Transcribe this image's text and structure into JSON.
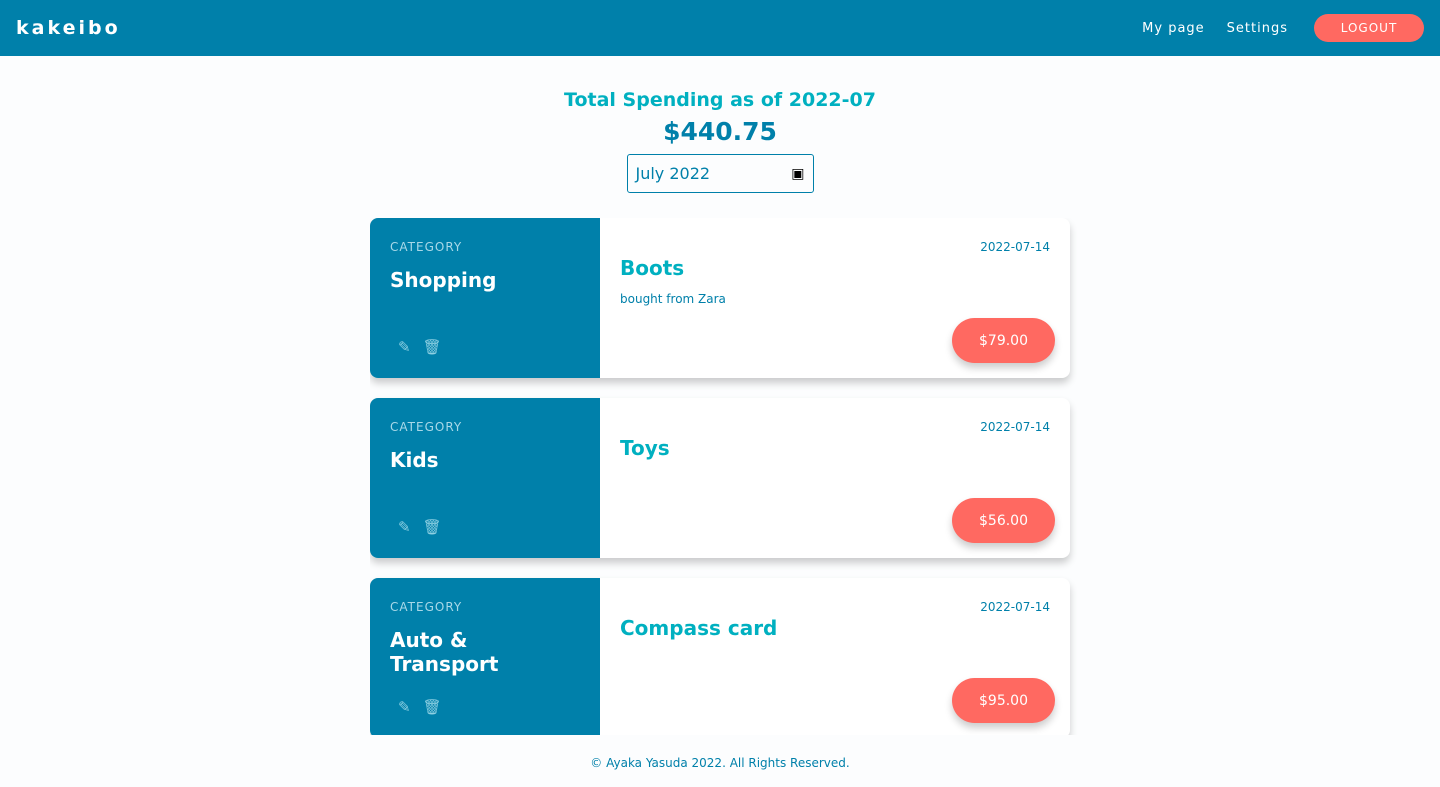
{
  "nav": {
    "logo": "kakeibo",
    "my_page": "My page",
    "settings": "Settings",
    "logout": "LOGOUT"
  },
  "summary": {
    "title": "Total Spending as of 2022-07",
    "total": "$440.75",
    "month": "July 2022"
  },
  "entries": [
    {
      "category_label": "CATEGORY",
      "category": "Shopping",
      "date": "2022-07-14",
      "name": "Boots",
      "note": "bought from Zara",
      "amount": "$79.00"
    },
    {
      "category_label": "CATEGORY",
      "category": "Kids",
      "date": "2022-07-14",
      "name": "Toys",
      "note": "",
      "amount": "$56.00"
    },
    {
      "category_label": "CATEGORY",
      "category": "Auto & Transport",
      "date": "2022-07-14",
      "name": "Compass card",
      "note": "",
      "amount": "$95.00"
    }
  ],
  "footer": "© Ayaka Yasuda 2022. All Rights Reserved.",
  "colors": {
    "primary": "#0080aa",
    "accent": "#ff6961",
    "teal": "#00b0c0"
  }
}
